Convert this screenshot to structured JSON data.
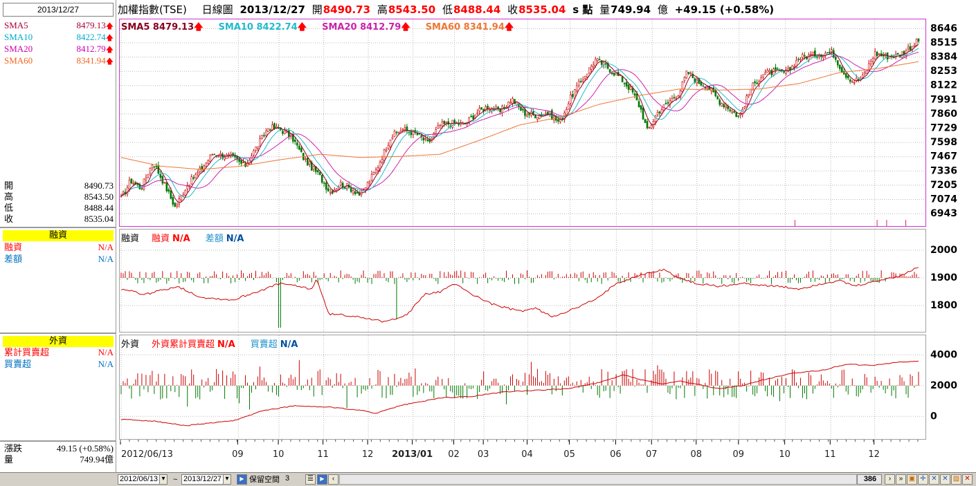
{
  "left_panel": {
    "date": "2013/12/27",
    "sma": [
      {
        "label": "SMA5",
        "value": "8479.13",
        "color": "#aa0033"
      },
      {
        "label": "SMA10",
        "value": "8422.74",
        "color": "#00aacc"
      },
      {
        "label": "SMA20",
        "value": "8412.79",
        "color": "#cc00aa"
      },
      {
        "label": "SMA60",
        "value": "8341.94",
        "color": "#ee6622"
      }
    ],
    "ohlc": [
      {
        "label": "開",
        "value": "8490.73"
      },
      {
        "label": "高",
        "value": "8543.50"
      },
      {
        "label": "低",
        "value": "8488.44"
      },
      {
        "label": "收",
        "value": "8535.04"
      }
    ],
    "margin_header": "融資",
    "margin_rows": [
      {
        "label": "融資",
        "value": "N/A",
        "color": "#ff0000"
      },
      {
        "label": "差額",
        "value": "N/A",
        "color": "#0070c0"
      }
    ],
    "foreign_header": "外資",
    "foreign_rows": [
      {
        "label": "累計買賣超",
        "value": "N/A",
        "color": "#ff0000"
      },
      {
        "label": "買賣超",
        "value": "N/A",
        "color": "#0070c0"
      }
    ],
    "change_label": "漲跌",
    "change_value": "49.15 (+0.58%)",
    "volume_label": "量",
    "volume_value": "749.94億"
  },
  "title": {
    "name": "加權指數(TSE)",
    "period": "日線圖",
    "date": "2013/12/27",
    "open_label": "開",
    "open": "8490.73",
    "high_label": "高",
    "high": "8543.50",
    "low_label": "低",
    "low": "8488.44",
    "close_label": "收",
    "close": "8535.04",
    "unit": "s 點",
    "vol_label": "量",
    "vol": "749.94",
    "vol_unit": "億",
    "change": "+49.15 (+0.58%)"
  },
  "price_legend": [
    {
      "text": "SMA5 8479.13",
      "color": "#880022"
    },
    {
      "text": "SMA10 8422.74",
      "color": "#22bbcc"
    },
    {
      "text": "SMA20 8412.79",
      "color": "#cc22aa"
    },
    {
      "text": "SMA60 8341.94",
      "color": "#ee7733"
    }
  ],
  "margin_legend": {
    "title": "融資",
    "a": "融資",
    "a_val": "N/A",
    "b": "差額",
    "b_val": "N/A"
  },
  "foreign_legend": {
    "title": "外資",
    "a": "外資累計買賣超",
    "a_val": "N/A",
    "b": "買賣超",
    "b_val": "N/A"
  },
  "bottom": {
    "start": "2012/06/13",
    "tilde": "~",
    "end": "2013/12/27",
    "reserve_label": "保留空間",
    "reserve_value": "3",
    "count": "386"
  },
  "chart_data": [
    {
      "type": "candlestick",
      "yticks": [
        6943,
        7074,
        7205,
        7336,
        7467,
        7598,
        7729,
        7860,
        7991,
        8122,
        8253,
        8384,
        8515,
        8646
      ],
      "ylim": [
        6880,
        8680
      ],
      "xtick_labels": [
        "2012/06/13",
        "09",
        "10",
        "11",
        "12",
        "2013/01",
        "02",
        "03",
        "04",
        "05",
        "06",
        "07",
        "08",
        "09",
        "10",
        "11",
        "12"
      ],
      "xtick_pos": [
        0.0,
        0.147,
        0.198,
        0.254,
        0.31,
        0.366,
        0.418,
        0.455,
        0.51,
        0.563,
        0.621,
        0.666,
        0.722,
        0.775,
        0.833,
        0.89,
        0.945
      ],
      "close_path": [
        [
          0.0,
          7080
        ],
        [
          0.012,
          7250
        ],
        [
          0.025,
          7180
        ],
        [
          0.04,
          7420
        ],
        [
          0.052,
          7250
        ],
        [
          0.068,
          7000
        ],
        [
          0.082,
          7200
        ],
        [
          0.1,
          7350
        ],
        [
          0.115,
          7500
        ],
        [
          0.14,
          7460
        ],
        [
          0.155,
          7380
        ],
        [
          0.17,
          7560
        ],
        [
          0.185,
          7740
        ],
        [
          0.2,
          7720
        ],
        [
          0.215,
          7640
        ],
        [
          0.23,
          7440
        ],
        [
          0.248,
          7300
        ],
        [
          0.262,
          7140
        ],
        [
          0.275,
          7220
        ],
        [
          0.292,
          7160
        ],
        [
          0.3,
          7110
        ],
        [
          0.32,
          7350
        ],
        [
          0.338,
          7650
        ],
        [
          0.352,
          7720
        ],
        [
          0.37,
          7680
        ],
        [
          0.385,
          7590
        ],
        [
          0.4,
          7760
        ],
        [
          0.418,
          7780
        ],
        [
          0.43,
          7760
        ],
        [
          0.445,
          7870
        ],
        [
          0.46,
          7930
        ],
        [
          0.475,
          7880
        ],
        [
          0.49,
          8000
        ],
        [
          0.505,
          7870
        ],
        [
          0.52,
          7850
        ],
        [
          0.535,
          7870
        ],
        [
          0.55,
          7780
        ],
        [
          0.565,
          8030
        ],
        [
          0.58,
          8200
        ],
        [
          0.595,
          8360
        ],
        [
          0.61,
          8290
        ],
        [
          0.625,
          8200
        ],
        [
          0.64,
          8080
        ],
        [
          0.652,
          7900
        ],
        [
          0.66,
          7700
        ],
        [
          0.672,
          7870
        ],
        [
          0.685,
          7960
        ],
        [
          0.7,
          8060
        ],
        [
          0.71,
          8250
        ],
        [
          0.722,
          8160
        ],
        [
          0.735,
          8120
        ],
        [
          0.75,
          7980
        ],
        [
          0.765,
          7900
        ],
        [
          0.775,
          7830
        ],
        [
          0.79,
          8100
        ],
        [
          0.805,
          8230
        ],
        [
          0.82,
          8250
        ],
        [
          0.835,
          8240
        ],
        [
          0.85,
          8380
        ],
        [
          0.865,
          8400
        ],
        [
          0.88,
          8420
        ],
        [
          0.892,
          8430
        ],
        [
          0.905,
          8250
        ],
        [
          0.918,
          8160
        ],
        [
          0.93,
          8200
        ],
        [
          0.945,
          8420
        ],
        [
          0.96,
          8390
        ],
        [
          0.975,
          8400
        ],
        [
          0.99,
          8480
        ],
        [
          1.0,
          8535
        ]
      ],
      "sma60_path": [
        [
          0.0,
          7460
        ],
        [
          0.05,
          7380
        ],
        [
          0.1,
          7350
        ],
        [
          0.15,
          7380
        ],
        [
          0.2,
          7440
        ],
        [
          0.25,
          7490
        ],
        [
          0.3,
          7460
        ],
        [
          0.35,
          7470
        ],
        [
          0.4,
          7490
        ],
        [
          0.45,
          7620
        ],
        [
          0.5,
          7760
        ],
        [
          0.55,
          7830
        ],
        [
          0.6,
          7950
        ],
        [
          0.65,
          8030
        ],
        [
          0.7,
          8090
        ],
        [
          0.75,
          8080
        ],
        [
          0.8,
          8090
        ],
        [
          0.85,
          8140
        ],
        [
          0.9,
          8240
        ],
        [
          0.95,
          8280
        ],
        [
          1.0,
          8342
        ]
      ]
    },
    {
      "type": "bar+line",
      "yticks": [
        1800,
        1900,
        2000
      ],
      "ylim": [
        1720,
        2060
      ],
      "line_path": [
        [
          0.0,
          1860
        ],
        [
          0.03,
          1840
        ],
        [
          0.07,
          1870
        ],
        [
          0.1,
          1830
        ],
        [
          0.14,
          1820
        ],
        [
          0.18,
          1860
        ],
        [
          0.2,
          1880
        ],
        [
          0.24,
          1860
        ],
        [
          0.245,
          1900
        ],
        [
          0.26,
          1770
        ],
        [
          0.3,
          1760
        ],
        [
          0.33,
          1740
        ],
        [
          0.36,
          1770
        ],
        [
          0.38,
          1840
        ],
        [
          0.4,
          1850
        ],
        [
          0.42,
          1880
        ],
        [
          0.44,
          1840
        ],
        [
          0.47,
          1800
        ],
        [
          0.5,
          1780
        ],
        [
          0.52,
          1790
        ],
        [
          0.54,
          1760
        ],
        [
          0.57,
          1790
        ],
        [
          0.6,
          1830
        ],
        [
          0.62,
          1880
        ],
        [
          0.65,
          1910
        ],
        [
          0.68,
          1930
        ],
        [
          0.7,
          1900
        ],
        [
          0.72,
          1880
        ],
        [
          0.75,
          1870
        ],
        [
          0.78,
          1880
        ],
        [
          0.82,
          1870
        ],
        [
          0.85,
          1860
        ],
        [
          0.88,
          1880
        ],
        [
          0.9,
          1890
        ],
        [
          0.92,
          1870
        ],
        [
          0.95,
          1890
        ],
        [
          0.98,
          1910
        ],
        [
          1.0,
          1940
        ]
      ]
    },
    {
      "type": "bar+line",
      "yticks": [
        0,
        2000,
        4000
      ],
      "ylim": [
        -1200,
        5000
      ],
      "line_path": [
        [
          0.0,
          -200
        ],
        [
          0.04,
          -300
        ],
        [
          0.08,
          -600
        ],
        [
          0.1,
          -500
        ],
        [
          0.14,
          -300
        ],
        [
          0.18,
          400
        ],
        [
          0.22,
          700
        ],
        [
          0.26,
          600
        ],
        [
          0.3,
          400
        ],
        [
          0.32,
          200
        ],
        [
          0.35,
          700
        ],
        [
          0.4,
          1200
        ],
        [
          0.44,
          1300
        ],
        [
          0.48,
          1600
        ],
        [
          0.52,
          1700
        ],
        [
          0.56,
          1800
        ],
        [
          0.6,
          2200
        ],
        [
          0.63,
          2700
        ],
        [
          0.65,
          2400
        ],
        [
          0.68,
          2100
        ],
        [
          0.7,
          2300
        ],
        [
          0.72,
          2100
        ],
        [
          0.75,
          1800
        ],
        [
          0.78,
          2000
        ],
        [
          0.8,
          2300
        ],
        [
          0.84,
          2800
        ],
        [
          0.88,
          3000
        ],
        [
          0.91,
          3400
        ],
        [
          0.94,
          3300
        ],
        [
          0.97,
          3500
        ],
        [
          1.0,
          3600
        ]
      ]
    }
  ]
}
